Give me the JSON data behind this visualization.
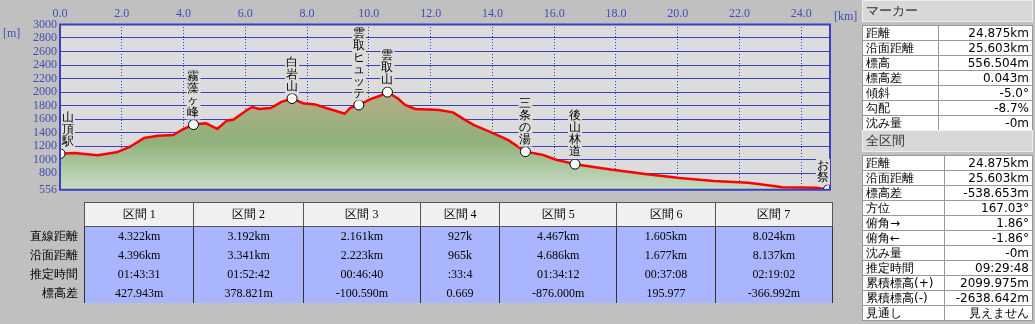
{
  "chart_data": [
    {
      "type": "area",
      "xlabel": "[km]",
      "ylabel": "[m]",
      "xlim": [
        0,
        24.93
      ],
      "ylim": [
        556,
        3000
      ],
      "xticks": [
        {
          "value": 0,
          "label": "0.0"
        },
        {
          "value": 2,
          "label": "2.0"
        },
        {
          "value": 4,
          "label": "4.0"
        },
        {
          "value": 6,
          "label": "6.0"
        },
        {
          "value": 8,
          "label": "8.0"
        },
        {
          "value": 10,
          "label": "10.0"
        },
        {
          "value": 12,
          "label": "12.0"
        },
        {
          "value": 14,
          "label": "14.0"
        },
        {
          "value": 16,
          "label": "16.0"
        },
        {
          "value": 18,
          "label": "18.0"
        },
        {
          "value": 20,
          "label": "20.0"
        },
        {
          "value": 22,
          "label": "22.0"
        },
        {
          "value": 24,
          "label": "24.0"
        }
      ],
      "yticks": [
        556,
        800,
        1000,
        1200,
        1400,
        1600,
        1800,
        2000,
        2200,
        2400,
        2600,
        2800,
        3000
      ],
      "grid": true,
      "marker": "none",
      "line_style": "solid",
      "series": [
        {
          "color": "#ff0000",
          "x": [
            0,
            0.47,
            1.22,
            1.83,
            2.28,
            2.72,
            3.17,
            3.67,
            3.94,
            4.322,
            4.72,
            5.09,
            5.39,
            5.61,
            6.06,
            6.22,
            6.44,
            6.83,
            7.17,
            7.514,
            7.89,
            8.28,
            8.61,
            8.94,
            9.22,
            9.39,
            9.675,
            10.05,
            10.39,
            10.602,
            10.94,
            11.17,
            11.5,
            12.28,
            12.72,
            13.11,
            13.39,
            14.11,
            14.5,
            15.069,
            15.61,
            16.06,
            16.674,
            17.83,
            18.94,
            20.06,
            21.17,
            22.28,
            23.39,
            24.5,
            24.875
          ],
          "values": [
            1090,
            1100,
            1065,
            1110,
            1195,
            1320,
            1355,
            1365,
            1440,
            1520,
            1540,
            1455,
            1575,
            1590,
            1735,
            1780,
            1750,
            1765,
            1855,
            1905,
            1830,
            1815,
            1765,
            1720,
            1680,
            1765,
            1810,
            1895,
            1950,
            2000,
            1905,
            1810,
            1750,
            1735,
            1700,
            1590,
            1515,
            1375,
            1295,
            1120,
            1075,
            1000,
            935,
            855,
            790,
            730,
            685,
            660,
            595,
            585,
            557
          ]
        },
        {
          "type": "scatter",
          "marker": "circle",
          "color": "#ffffff",
          "x": [
            0,
            4.322,
            7.514,
            9.675,
            10.602,
            15.069,
            16.674,
            24.875
          ],
          "values": [
            1090,
            1520,
            1905,
            1810,
            2000,
            1120,
            935,
            557
          ]
        }
      ],
      "annotations": [
        {
          "text": "山頂駅",
          "x": 0,
          "y": 1090
        },
        {
          "text": "霧藻ヶ峰",
          "x": 4.322,
          "y": 1520
        },
        {
          "text": "白岩山",
          "x": 7.514,
          "y": 1905
        },
        {
          "text": "雲取ヒュッテ",
          "x": 9.675,
          "y": 1810
        },
        {
          "text": "雲取山",
          "x": 10.602,
          "y": 2000
        },
        {
          "text": "三条の湯",
          "x": 15.069,
          "y": 1120
        },
        {
          "text": "後山林道",
          "x": 16.674,
          "y": 935
        },
        {
          "text": "お祭",
          "x": 24.875,
          "y": 557
        }
      ]
    },
    {
      "type": "other",
      "categories": [
        "区間 1",
        "区間 2",
        "区間 3",
        "区間 4",
        "区間 5",
        "区間 6",
        "区間 7"
      ],
      "y_categories": [
        "直線距離",
        "沿面距離",
        "推定時間",
        "標高差"
      ],
      "cell_labels": [
        [
          "4.322km",
          "3.192km",
          "2.161km",
          "927k",
          "4.467km",
          "1.605km",
          "8.024km"
        ],
        [
          "4.396km",
          "3.341km",
          "2.223km",
          "965k",
          "4.686km",
          "1.677km",
          "8.137km"
        ],
        [
          "01:43:31",
          "01:52:42",
          "00:46:40",
          ":33:4",
          "01:34:12",
          "00:37:08",
          "02:19:02"
        ],
        [
          "427.943m",
          "378.821m",
          "-100.590m",
          "0.669",
          "-876.000m",
          "195.977",
          "-366.992m"
        ]
      ]
    },
    {
      "type": "other",
      "title": "マーカー",
      "categories": [
        "距離",
        "沿面距離",
        "標高",
        "標高差",
        "傾斜",
        "勾配",
        "沈み量"
      ],
      "value_labels": [
        "24.875km",
        "25.603km",
        "556.504m",
        "0.043m",
        "-5.0°",
        "-8.7%",
        "-0m"
      ]
    },
    {
      "type": "other",
      "title": "全区間",
      "categories": [
        "距離",
        "沿面距離",
        "標高差",
        "方位",
        "俯角→",
        "俯角←",
        "沈み量",
        "推定時間",
        "累積標高(+)",
        "累積標高(-)",
        "見通し"
      ],
      "value_labels": [
        "24.875km",
        "25.603km",
        "-538.653m",
        "167.03°",
        "1.86°",
        "-1.86°",
        "-0m",
        "09:29:48",
        "2099.975m",
        "-2638.642m",
        "見えません"
      ]
    }
  ]
}
